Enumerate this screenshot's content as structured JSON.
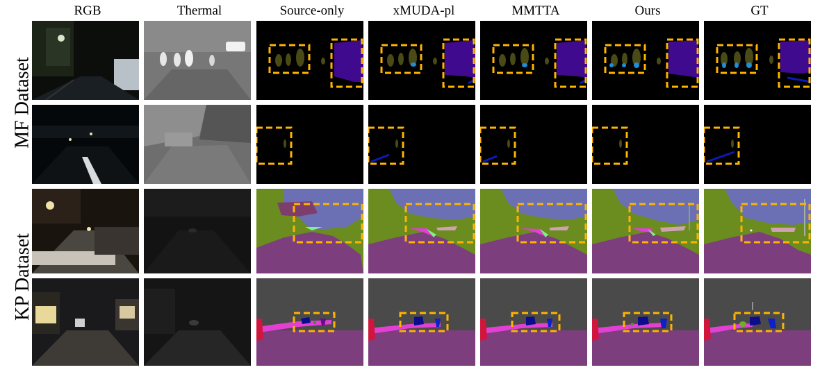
{
  "columns": [
    "RGB",
    "Thermal",
    "Source-only",
    "xMUDA-pl",
    "MMTTA",
    "Ours",
    "GT"
  ],
  "row_groups": [
    {
      "label": "MF Dataset"
    },
    {
      "label": "KP Dataset"
    }
  ],
  "colors": {
    "highlight": "#ffb400",
    "person_olive": "#4a4a16",
    "person_blue": "#1e8ed8",
    "car_purple": "#3f0a8e",
    "line_blue": "#1018b8",
    "vegetation": "#6b8c1f",
    "sky": "#6b6fb3",
    "road": "#7d3e7e",
    "building_gray": "#4a4a4a",
    "pole_pink": "#e23fd3",
    "red_object": "#d0163d",
    "car_navy": "#0d0d8c"
  }
}
